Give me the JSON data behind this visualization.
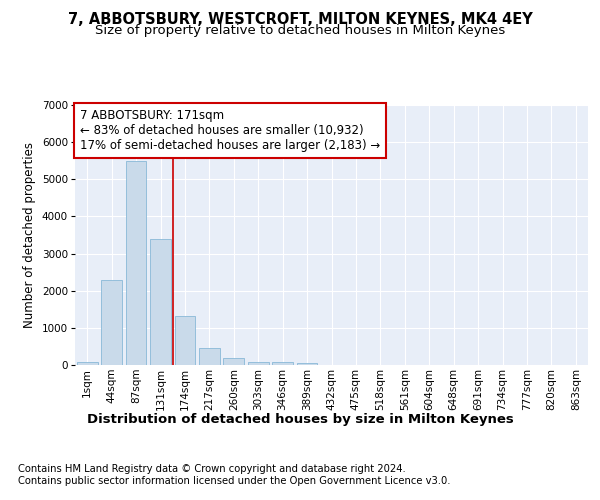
{
  "title": "7, ABBOTSBURY, WESTCROFT, MILTON KEYNES, MK4 4EY",
  "subtitle": "Size of property relative to detached houses in Milton Keynes",
  "xlabel": "Distribution of detached houses by size in Milton Keynes",
  "ylabel": "Number of detached properties",
  "footnote1": "Contains HM Land Registry data © Crown copyright and database right 2024.",
  "footnote2": "Contains public sector information licensed under the Open Government Licence v3.0.",
  "annotation_line1": "7 ABBOTSBURY: 171sqm",
  "annotation_line2": "← 83% of detached houses are smaller (10,932)",
  "annotation_line3": "17% of semi-detached houses are larger (2,183) →",
  "bar_values": [
    75,
    2280,
    5480,
    3400,
    1310,
    460,
    185,
    90,
    70,
    55,
    0,
    0,
    0,
    0,
    0,
    0,
    0,
    0,
    0,
    0,
    0
  ],
  "bar_labels": [
    "1sqm",
    "44sqm",
    "87sqm",
    "131sqm",
    "174sqm",
    "217sqm",
    "260sqm",
    "303sqm",
    "346sqm",
    "389sqm",
    "432sqm",
    "475sqm",
    "518sqm",
    "561sqm",
    "604sqm",
    "648sqm",
    "691sqm",
    "734sqm",
    "777sqm",
    "820sqm",
    "863sqm"
  ],
  "bar_color": "#c9daea",
  "bar_edge_color": "#89b8d8",
  "bg_color": "#e8eef8",
  "grid_color": "#ffffff",
  "vline_color": "#cc0000",
  "ylim": [
    0,
    7000
  ],
  "yticks": [
    0,
    1000,
    2000,
    3000,
    4000,
    5000,
    6000,
    7000
  ],
  "title_fontsize": 10.5,
  "subtitle_fontsize": 9.5,
  "xlabel_fontsize": 9.5,
  "ylabel_fontsize": 8.5,
  "tick_fontsize": 7.5,
  "annotation_fontsize": 8.5,
  "footnote_fontsize": 7.2
}
